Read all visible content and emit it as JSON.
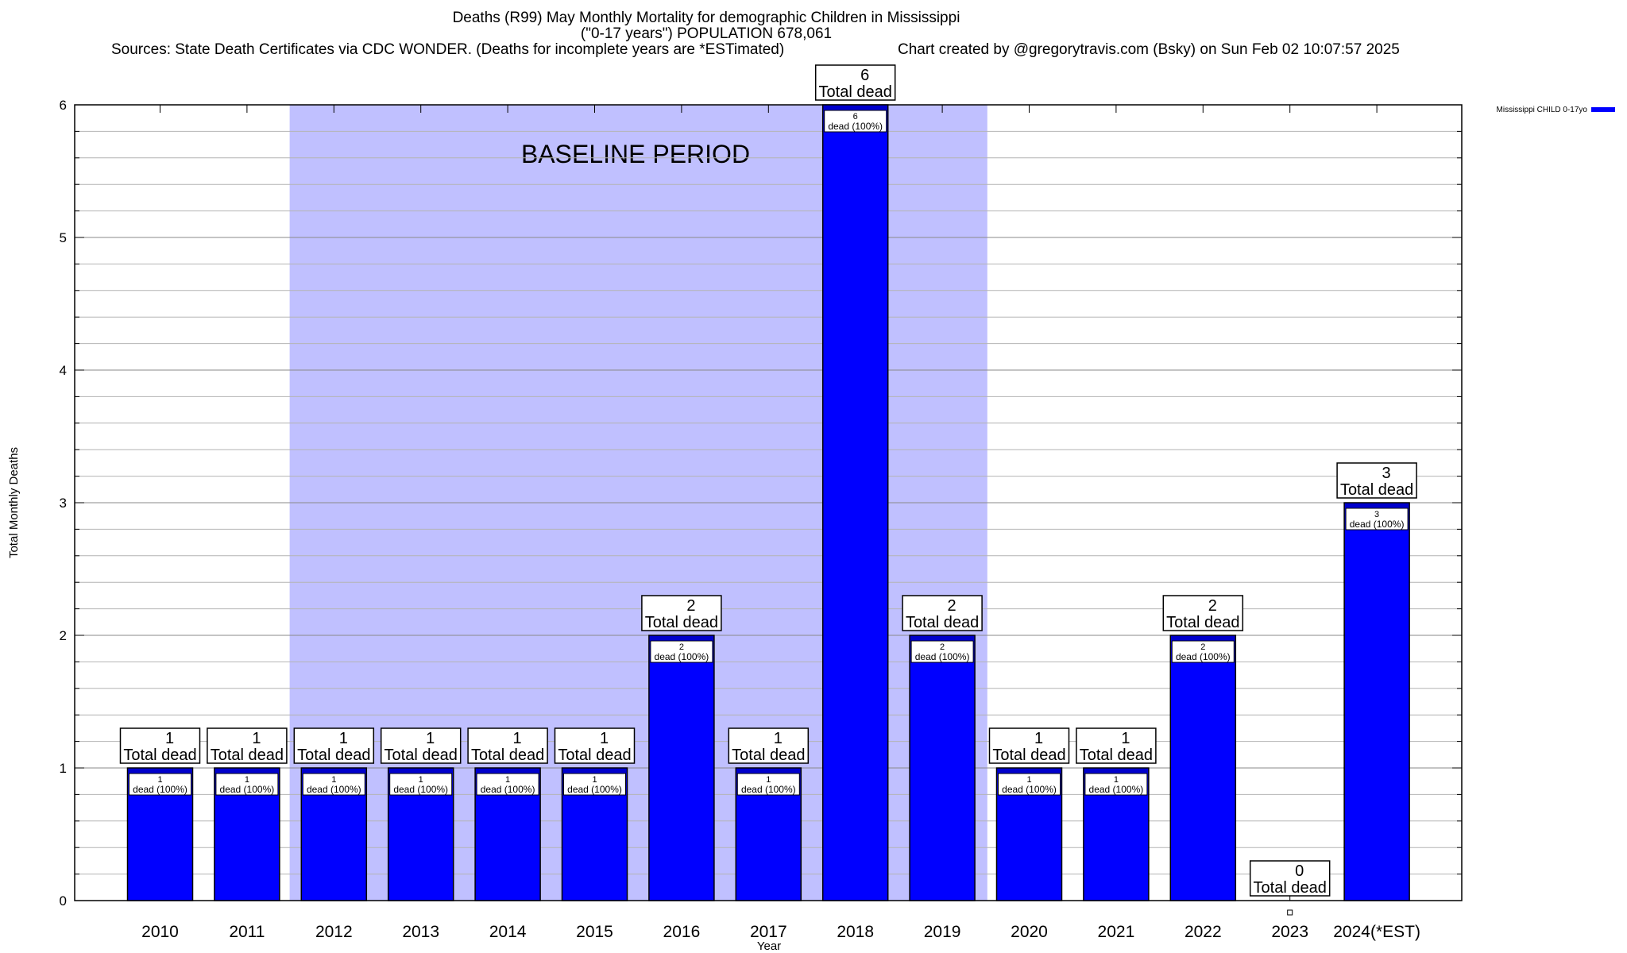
{
  "titles": {
    "line1": "Deaths (R99) May Monthly Mortality for demographic Children in Mississippi",
    "line2": "(\"0-17 years\") POPULATION 678,061",
    "line3": "Sources: State Death Certificates via CDC WONDER. (Deaths for incomplete years are *ESTimated)",
    "line4": "Chart created by @gregorytravis.com (Bsky) on Sun Feb 02 10:07:57 2025"
  },
  "chart_data": {
    "type": "bar",
    "xlabel": "Year",
    "ylabel": "Total Monthly Deaths",
    "ylim": [
      0,
      6
    ],
    "yticks": [
      "0",
      "1",
      "2",
      "3",
      "4",
      "5",
      "6"
    ],
    "categories": [
      "2010",
      "2011",
      "2012",
      "2013",
      "2014",
      "2015",
      "2016",
      "2017",
      "2018",
      "2019",
      "2020",
      "2021",
      "2022",
      "2023",
      "2024(*EST)"
    ],
    "series": [
      {
        "name": "Mississippi CHILD 0-17yo",
        "values": [
          1,
          1,
          1,
          1,
          1,
          1,
          2,
          1,
          6,
          2,
          1,
          1,
          2,
          0,
          3
        ]
      }
    ],
    "bar_label_top": [
      "1",
      "1",
      "1",
      "1",
      "1",
      "1",
      "2",
      "1",
      "6",
      "2",
      "1",
      "1",
      "2",
      "0",
      "3"
    ],
    "bar_label_bottom": "Total dead",
    "inner_label_top": [
      "1",
      "1",
      "1",
      "1",
      "1",
      "1",
      "2",
      "1",
      "6",
      "2",
      "1",
      "1",
      "2",
      "",
      "3"
    ],
    "inner_label_bottom": "dead (100%)",
    "baseline_region": {
      "label": "BASELINE PERIOD",
      "from": "2012",
      "to": "2019"
    },
    "grid": true,
    "legend_position": "top-right",
    "colors": {
      "bar": "#0000ff",
      "bar_top": "#0000cc",
      "baseline": "#c0c0ff"
    }
  }
}
